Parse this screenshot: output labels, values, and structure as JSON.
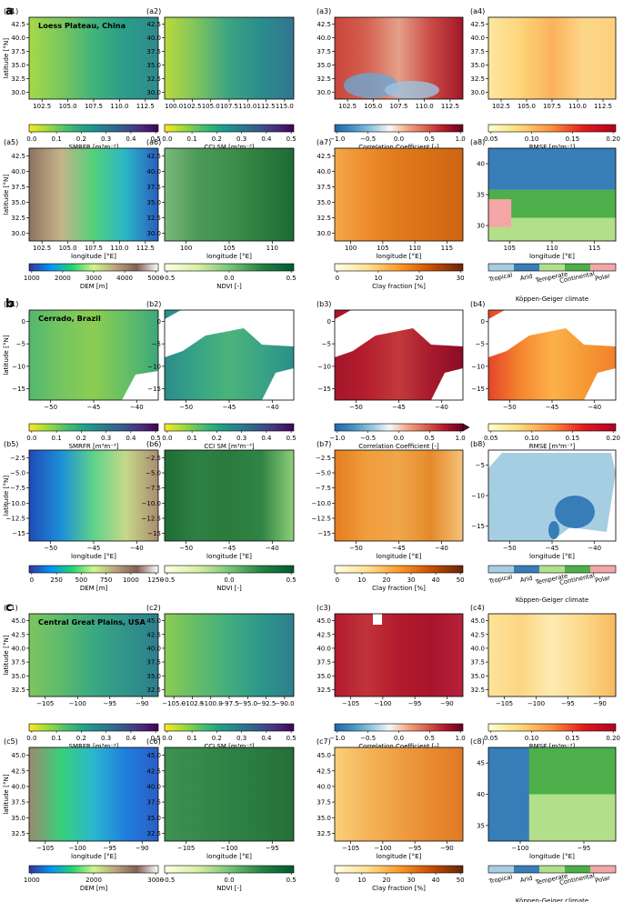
{
  "figure": {
    "colors": {
      "viridis_r": [
        "#fde725",
        "#a0da39",
        "#4ac16d",
        "#1fa187",
        "#277f8e",
        "#365c8d",
        "#46327e",
        "#440154"
      ],
      "rdbu": [
        "#2166ac",
        "#4393c3",
        "#92c5de",
        "#f7f7f7",
        "#f4a582",
        "#d6604d",
        "#b2182b",
        "#67001f"
      ],
      "ylorrd": [
        "#ffffcc",
        "#fed976",
        "#fd8d3c",
        "#e31a1c",
        "#b10026"
      ],
      "terrain": [
        "#333399",
        "#0294fa",
        "#24d36d",
        "#d0f58a",
        "#bba47f",
        "#845f57",
        "#ffffff"
      ],
      "ndvi": [
        "#ffffe5",
        "#d9f0a3",
        "#78c679",
        "#238443",
        "#005a32"
      ],
      "clay": [
        "#ffffe5",
        "#fee391",
        "#fe9929",
        "#cc4c02",
        "#662506"
      ],
      "koppen": [
        "#a6cee3",
        "#377eb8",
        "#b2df8a",
        "#4daf4a",
        "#f4a6a6"
      ]
    },
    "koppen_label": "Köppen-Geiger climate",
    "koppen_classes": [
      "Tropical",
      "Arid",
      "Temperate",
      "Continental",
      "Polar"
    ],
    "regions": [
      {
        "letter": "a",
        "title": "Loess Plateau, China",
        "panel_labels": [
          "(a1)",
          "(a2)",
          "(a3)",
          "(a4)",
          "(a5)",
          "(a6)",
          "(a7)",
          "(a8)"
        ],
        "row1_xticks": [
          "102.5",
          "105.0",
          "107.5",
          "110.0",
          "112.5"
        ],
        "row1_yticks": [
          "42.5",
          "40.0",
          "37.5",
          "35.0",
          "32.5",
          "30.0"
        ],
        "row2_xticks": [
          [
            "102.5",
            "105.0",
            "107.5",
            "110.0",
            "112.5"
          ],
          [
            "100",
            "105",
            "110"
          ],
          [
            "100",
            "105",
            "110",
            "115"
          ],
          [
            "105",
            "110",
            "115"
          ]
        ],
        "row2_yticks": [
          [
            "42.5",
            "40.0",
            "37.5",
            "35.0",
            "32.5",
            "30.0"
          ],
          [
            "42.5",
            "40.0",
            "37.5",
            "35.0",
            "32.5",
            "30.0"
          ],
          [
            "42.5",
            "40.0",
            "37.5",
            "35.0",
            "32.5",
            "30.0"
          ],
          [
            "40",
            "35",
            "30"
          ]
        ],
        "ylabel": "latitude [°N]",
        "xlabel": "longitude [°E]",
        "row1_colorbars": [
          {
            "label": "SMRFR [m³m⁻³]",
            "ticks": [
              "0.0",
              "0.1",
              "0.2",
              "0.3",
              "0.4",
              "0.5"
            ]
          },
          {
            "label": "CCI SM [m³m⁻³]",
            "ticks": [
              "0.0",
              "0.1",
              "0.2",
              "0.3",
              "0.4",
              "0.5"
            ]
          },
          {
            "label": "Correlation Coefficient [-]",
            "ticks": [
              "−1.0",
              "−0.5",
              "0.0",
              "0.5",
              "1.0"
            ]
          },
          {
            "label": "RMSE [m³m⁻³]",
            "ticks": [
              "0.05",
              "0.10",
              "0.15",
              "0.20"
            ]
          }
        ],
        "row2_colorbars": [
          {
            "label": "DEM [m]",
            "ticks": [
              "1000",
              "2000",
              "3000",
              "4000",
              "5000"
            ]
          },
          {
            "label": "NDVI [-]",
            "ticks": [
              "−0.5",
              "0.0",
              "0.5"
            ]
          },
          {
            "label": "Clay fraction [%]",
            "ticks": [
              "0",
              "10",
              "20",
              "30"
            ]
          }
        ]
      },
      {
        "letter": "b",
        "title": "Cerrado, Brazil",
        "panel_labels": [
          "(b1)",
          "(b2)",
          "(b3)",
          "(b4)",
          "(b5)",
          "(b6)",
          "(b7)",
          "(b8)"
        ],
        "row1_xticks": [
          "−50",
          "−45",
          "−40"
        ],
        "row1_yticks": [
          "0",
          "−5",
          "−10",
          "−15"
        ],
        "row2_xticks": [
          [
            "−50",
            "−45",
            "−40"
          ],
          [
            "−50",
            "−45",
            "−40"
          ],
          [
            "−50",
            "−45",
            "−40"
          ],
          [
            "−50",
            "−45",
            "−40"
          ]
        ],
        "row2_yticks": [
          [
            "−2.5",
            "−5.0",
            "−7.5",
            "−10.0",
            "−12.5",
            "−15"
          ],
          [
            "−2.5",
            "−5.0",
            "−7.5",
            "−10.0",
            "−12.5",
            "−15"
          ],
          [
            "−2.5",
            "−5.0",
            "−7.5",
            "−10.0",
            "−12.5",
            "−15"
          ],
          [
            "−5",
            "−10",
            "−15"
          ]
        ],
        "ylabel": "latitude [°N]",
        "xlabel": "longitude [°E]",
        "row1_colorbars": [
          {
            "label": "SMRFR [m³m⁻³]",
            "ticks": [
              "0.0",
              "0.1",
              "0.2",
              "0.3",
              "0.4",
              "0.5"
            ]
          },
          {
            "label": "CCI SM [m³m⁻³]",
            "ticks": [
              "0.0",
              "0.1",
              "0.2",
              "0.3",
              "0.4",
              "0.5"
            ]
          },
          {
            "label": "Correlation Coefficient [-]",
            "ticks": [
              "−1.0",
              "−0.5",
              "0.0",
              "0.5",
              "1.0"
            ]
          },
          {
            "label": "RMSE [m³m⁻³]",
            "ticks": [
              "0.05",
              "0.10",
              "0.15",
              "0.20"
            ]
          }
        ],
        "row2_colorbars": [
          {
            "label": "DEM [m]",
            "ticks": [
              "0",
              "250",
              "500",
              "750",
              "1000",
              "1250"
            ]
          },
          {
            "label": "NDVI [-]",
            "ticks": [
              "−0.5",
              "0.0",
              "0.5"
            ]
          },
          {
            "label": "Clay fraction [%]",
            "ticks": [
              "0",
              "10",
              "20",
              "30",
              "40",
              "50"
            ]
          }
        ]
      },
      {
        "letter": "c",
        "title": "Central Great Plains, USA",
        "panel_labels": [
          "(c1)",
          "(c2)",
          "(c3)",
          "(c4)",
          "(c5)",
          "(c6)",
          "(c7)",
          "(c8)"
        ],
        "row1_xticks": [
          "−105",
          "−100",
          "−95",
          "−90"
        ],
        "row1_xticks_b": [
          "−105.0",
          "−102.5",
          "−100.0",
          "−97.5",
          "−95.0",
          "−92.5",
          "−90.0"
        ],
        "row1_yticks": [
          "45.0",
          "42.5",
          "40.0",
          "37.5",
          "35.0",
          "32.5"
        ],
        "row2_xticks": [
          [
            "−105",
            "−100",
            "−95",
            "−90"
          ],
          [
            "−105",
            "−100",
            "−95"
          ],
          [
            "−105",
            "−100",
            "−95",
            "−90"
          ],
          [
            "−100",
            "−95"
          ]
        ],
        "row2_yticks": [
          [
            "45.0",
            "42.5",
            "40.0",
            "37.5",
            "35.0",
            "32.5"
          ],
          [
            "45.0",
            "42.5",
            "40.0",
            "37.5",
            "35.0",
            "32.5"
          ],
          [
            "45.0",
            "42.5",
            "40.0",
            "37.5",
            "35.0",
            "32.5"
          ],
          [
            "45",
            "40",
            "35"
          ]
        ],
        "ylabel": "latitude [°N]",
        "xlabel": "longitude [°E]",
        "row1_colorbars": [
          {
            "label": "SMRFR [m³m⁻³]",
            "ticks": [
              "0.0",
              "0.1",
              "0.2",
              "0.3",
              "0.4",
              "0.5"
            ]
          },
          {
            "label": "CCI SM [m³m⁻³]",
            "ticks": [
              "0.0",
              "0.1",
              "0.2",
              "0.3",
              "0.4",
              "0.5"
            ]
          },
          {
            "label": "Correlation Coefficient [-]",
            "ticks": [
              "−1.0",
              "−0.5",
              "0.0",
              "0.5",
              "1.0"
            ]
          },
          {
            "label": "RMSE [m³m⁻³]",
            "ticks": [
              "0.05",
              "0.10",
              "0.15",
              "0.20"
            ]
          }
        ],
        "row2_colorbars": [
          {
            "label": "DEM [m]",
            "ticks": [
              "1000",
              "2000",
              "3000"
            ]
          },
          {
            "label": "NDVI [-]",
            "ticks": [
              "−0.5",
              "0.0",
              "0.5"
            ]
          },
          {
            "label": "Clay fraction [%]",
            "ticks": [
              "0",
              "10",
              "20",
              "30",
              "40",
              "50"
            ]
          }
        ]
      }
    ]
  },
  "chart_data": {
    "type": "heatmap",
    "title": "",
    "regions": [
      "Loess Plateau, China",
      "Cerrado, Brazil",
      "Central Great Plains, USA"
    ],
    "variables": [
      "SMRFR",
      "CCI SM",
      "Correlation Coefficient",
      "RMSE",
      "DEM",
      "NDVI",
      "Clay fraction",
      "Köppen-Geiger climate"
    ],
    "colorbar_ranges": {
      "SMRFR": [
        0,
        0.5
      ],
      "CCI SM": [
        0,
        0.5
      ],
      "Correlation Coefficient": [
        -1,
        1
      ],
      "RMSE_a": [
        0.02,
        0.2
      ],
      "RMSE_b": [
        0.02,
        0.24
      ],
      "RMSE_c": [
        0.02,
        0.22
      ],
      "DEM_a": [
        0,
        5500
      ],
      "DEM_b": [
        0,
        1350
      ],
      "DEM_c": [
        0,
        3200
      ],
      "NDVI": [
        -0.9,
        0.9
      ],
      "Clay_a": [
        0,
        33
      ],
      "Clay_b": [
        0,
        50
      ],
      "Clay_c": [
        0,
        50
      ]
    },
    "extents": {
      "Loess Plateau, China": {
        "lon": [
          100,
          115
        ],
        "lat": [
          29,
          44
        ]
      },
      "Cerrado, Brazil": {
        "lon": [
          -56,
          -36
        ],
        "lat": [
          -15,
          1
        ]
      },
      "Central Great Plains, USA": {
        "lon": [
          -105,
          -90
        ],
        "lat": [
          32,
          47
        ]
      }
    }
  }
}
